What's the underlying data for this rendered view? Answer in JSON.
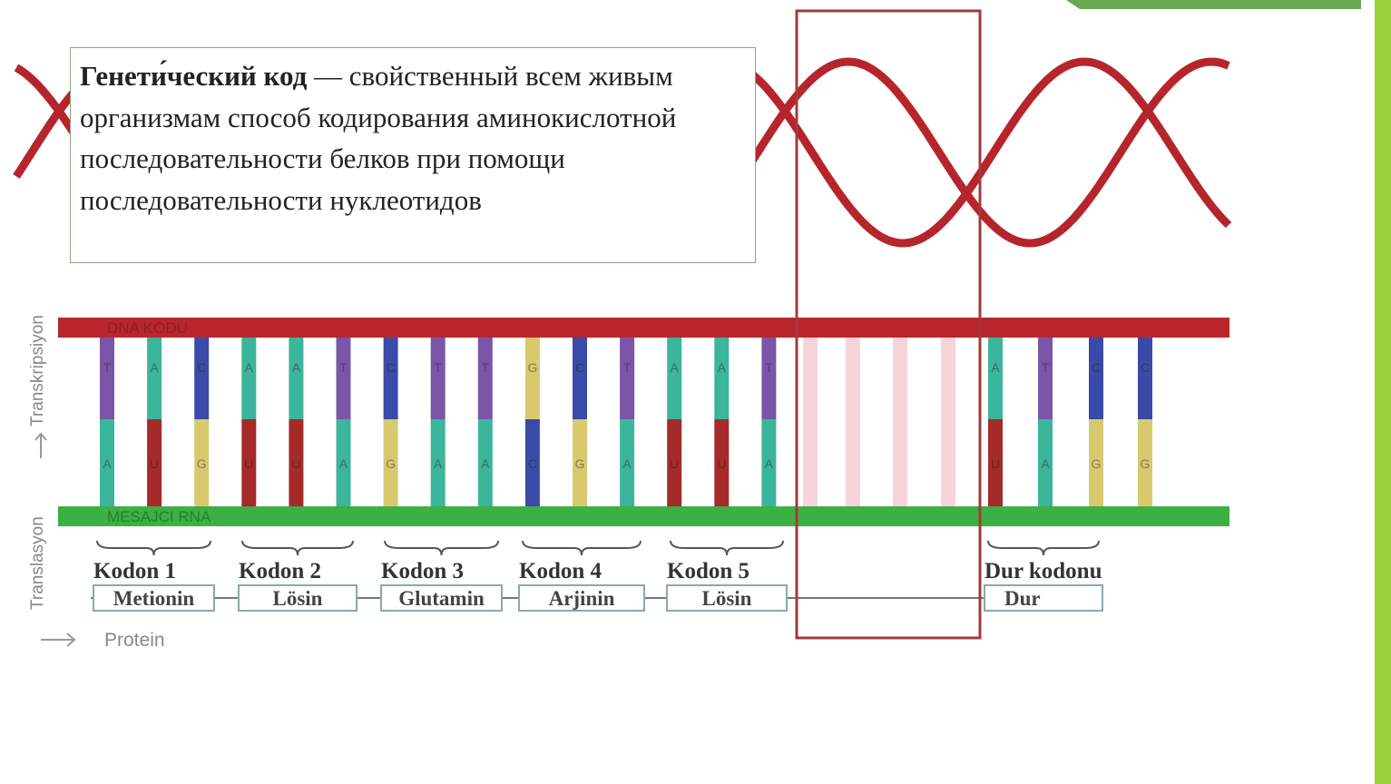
{
  "definition": {
    "term": "Генети́ческий код",
    "text": "— свойственный всем живым организмам способ кодирования аминокислотной последовательности белков при помощи последовательности нуклеотидов"
  },
  "diagram": {
    "dna_label": "DNA KODU",
    "mrna_label": "MESAJCI RNA",
    "transcription_label": "Transkripsiyon",
    "translation_label": "Translasyon",
    "protein_label": "Protein",
    "nucleotides": [
      {
        "dna": "T",
        "rna": "A"
      },
      {
        "dna": "A",
        "rna": "U"
      },
      {
        "dna": "C",
        "rna": "G"
      },
      {
        "dna": "A",
        "rna": "U"
      },
      {
        "dna": "A",
        "rna": "U"
      },
      {
        "dna": "T",
        "rna": "A"
      },
      {
        "dna": "C",
        "rna": "G"
      },
      {
        "dna": "T",
        "rna": "A"
      },
      {
        "dna": "T",
        "rna": "A"
      },
      {
        "dna": "G",
        "rna": "C"
      },
      {
        "dna": "C",
        "rna": "G"
      },
      {
        "dna": "T",
        "rna": "A"
      },
      {
        "dna": "A",
        "rna": "U"
      },
      {
        "dna": "A",
        "rna": "U"
      },
      {
        "dna": "T",
        "rna": "A"
      },
      {
        "dna": "A",
        "rna": "U"
      },
      {
        "dna": "T",
        "rna": "A"
      },
      {
        "dna": "C",
        "rna": "G"
      },
      {
        "dna": "C",
        "rna": "G"
      }
    ],
    "codons": [
      {
        "label": "Kodon 1",
        "amino_acid": "Metionin"
      },
      {
        "label": "Kodon 2",
        "amino_acid": "Lösin"
      },
      {
        "label": "Kodon 3",
        "amino_acid": "Glutamin"
      },
      {
        "label": "Kodon 4",
        "amino_acid": "Arjinin"
      },
      {
        "label": "Kodon 5",
        "amino_acid": "Lösin"
      },
      {
        "label": "Dur kodonu",
        "amino_acid": "Dur"
      }
    ]
  }
}
